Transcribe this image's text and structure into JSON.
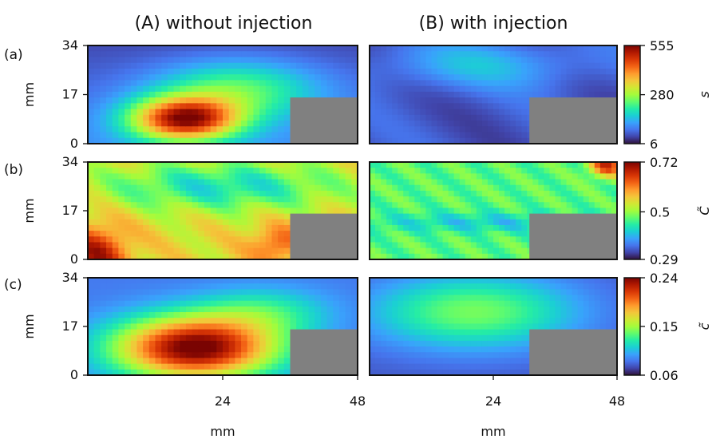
{
  "figure": {
    "column_titles": [
      "(A) without injection",
      "(B) with injection"
    ],
    "row_labels": [
      "(a)",
      "(b)",
      "(c)"
    ],
    "colorbar_labels": [
      "s",
      "C̃",
      "c̃"
    ],
    "colormap": [
      "#30123b",
      "#4145ab",
      "#4675ed",
      "#39a2fc",
      "#1bcfd4",
      "#24eca6",
      "#61fc6c",
      "#a4fc3b",
      "#d1e834",
      "#f3c63a",
      "#fe9b2d",
      "#f36315",
      "#d93806",
      "#b11901",
      "#7a0402"
    ],
    "obstacle_color": "#808080"
  },
  "chart_data": [
    {
      "type": "heatmap",
      "panel": "(a) (A) without injection",
      "ylabel": "mm",
      "xlabel": "",
      "x_range_mm": [
        0,
        48
      ],
      "y_range_mm": [
        0,
        34
      ],
      "y_ticks": [
        "0",
        "17",
        "34"
      ],
      "x_ticks": [],
      "clim": [
        6,
        555
      ],
      "obstacle_mm": {
        "x": [
          36,
          48
        ],
        "y": [
          0,
          16
        ]
      },
      "field": "strong hot spot centered near x≈18 mm, y≈10 mm; high-value lobe spreading upward toward upper right, low values at top"
    },
    {
      "type": "heatmap",
      "panel": "(a) (B) with injection",
      "ylabel": "",
      "xlabel": "",
      "x_range_mm": [
        0,
        48
      ],
      "y_range_mm": [
        0,
        34
      ],
      "y_ticks": [],
      "x_ticks": [],
      "clim": [
        6,
        555
      ],
      "obstacle_mm": {
        "x": [
          31,
          48
        ],
        "y": [
          0,
          16
        ]
      },
      "field": "uniformly low values, slightly higher band near top"
    },
    {
      "type": "heatmap",
      "panel": "(b) (A) without injection",
      "ylabel": "mm",
      "xlabel": "",
      "x_range_mm": [
        0,
        48
      ],
      "y_range_mm": [
        0,
        34
      ],
      "y_ticks": [
        "0",
        "17",
        "34"
      ],
      "x_ticks": [],
      "clim": [
        0.29,
        0.72
      ],
      "obstacle_mm": {
        "x": [
          36,
          48
        ],
        "y": [
          0,
          16
        ]
      },
      "field": "moderate-high values over lower body, very high at bottom-left corner and near obstacle edge, lower in upper region"
    },
    {
      "type": "heatmap",
      "panel": "(b) (B) with injection",
      "ylabel": "",
      "xlabel": "",
      "x_range_mm": [
        0,
        48
      ],
      "y_range_mm": [
        0,
        34
      ],
      "y_ticks": [],
      "x_ticks": [],
      "clim": [
        0.29,
        0.72
      ],
      "obstacle_mm": {
        "x": [
          31,
          48
        ],
        "y": [
          0,
          16
        ]
      },
      "field": "mostly mid values, low band near y≈17 mm, high spot at top-right corner"
    },
    {
      "type": "heatmap",
      "panel": "(c) (A) without injection",
      "ylabel": "mm",
      "xlabel": "mm",
      "x_range_mm": [
        0,
        48
      ],
      "y_range_mm": [
        0,
        34
      ],
      "y_ticks": [
        "0",
        "17",
        "34"
      ],
      "x_ticks": [
        "24",
        "48"
      ],
      "clim": [
        0.06,
        0.24
      ],
      "obstacle_mm": {
        "x": [
          36,
          48
        ],
        "y": [
          0,
          16
        ]
      },
      "field": "large high-value region centered near x≈20 mm, y≈12 mm, tilted upward to the right, low at top-left and right"
    },
    {
      "type": "heatmap",
      "panel": "(c) (B) with injection",
      "ylabel": "",
      "xlabel": "mm",
      "x_range_mm": [
        0,
        48
      ],
      "y_range_mm": [
        0,
        34
      ],
      "y_ticks": [],
      "x_ticks": [
        "24",
        "48"
      ],
      "clim": [
        0.06,
        0.24
      ],
      "obstacle_mm": {
        "x": [
          31,
          48
        ],
        "y": [
          0,
          16
        ]
      },
      "field": "smooth low-to-mid values, mild maximum near x≈20 mm, y≈22 mm"
    }
  ],
  "colorbars": [
    {
      "label": "s",
      "ticks": [
        "555",
        "280",
        "6"
      ],
      "values": [
        555,
        280,
        6
      ]
    },
    {
      "label": "C̃",
      "ticks": [
        "0.72",
        "0.5",
        "0.29"
      ],
      "values": [
        0.72,
        0.5,
        0.29
      ]
    },
    {
      "label": "c̃",
      "ticks": [
        "0.24",
        "0.15",
        "0.06"
      ],
      "values": [
        0.24,
        0.15,
        0.06
      ]
    }
  ]
}
